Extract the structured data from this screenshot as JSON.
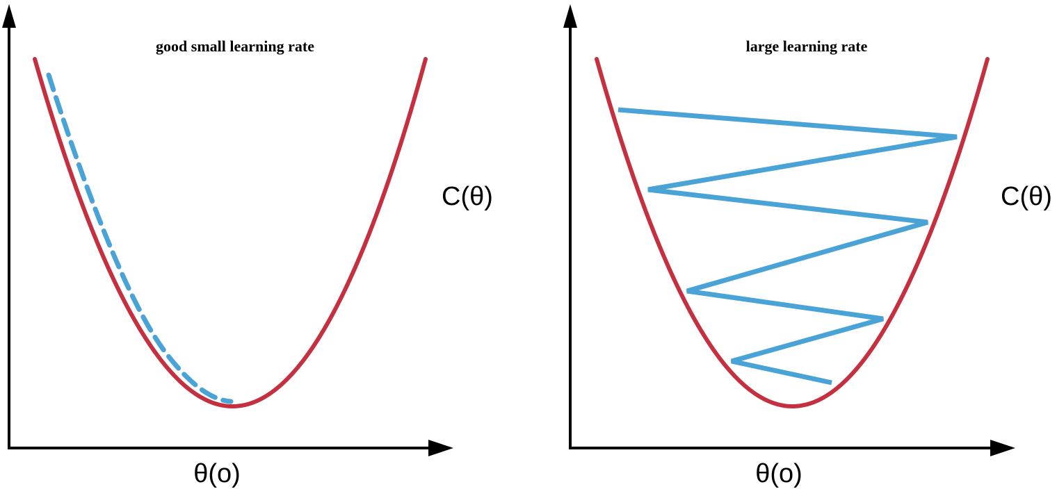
{
  "panels": [
    {
      "title": "good small learning rate",
      "x_label": "θ(o)",
      "y_label": "C(θ)",
      "path_style": "dashed"
    },
    {
      "title": "large learning rate",
      "x_label": "θ(o)",
      "y_label": "C(θ)",
      "path_style": "zigzag"
    }
  ],
  "colors": {
    "cost_curve": "#c4303f",
    "descent_path": "#4aa3d6",
    "axes": "#000000"
  }
}
